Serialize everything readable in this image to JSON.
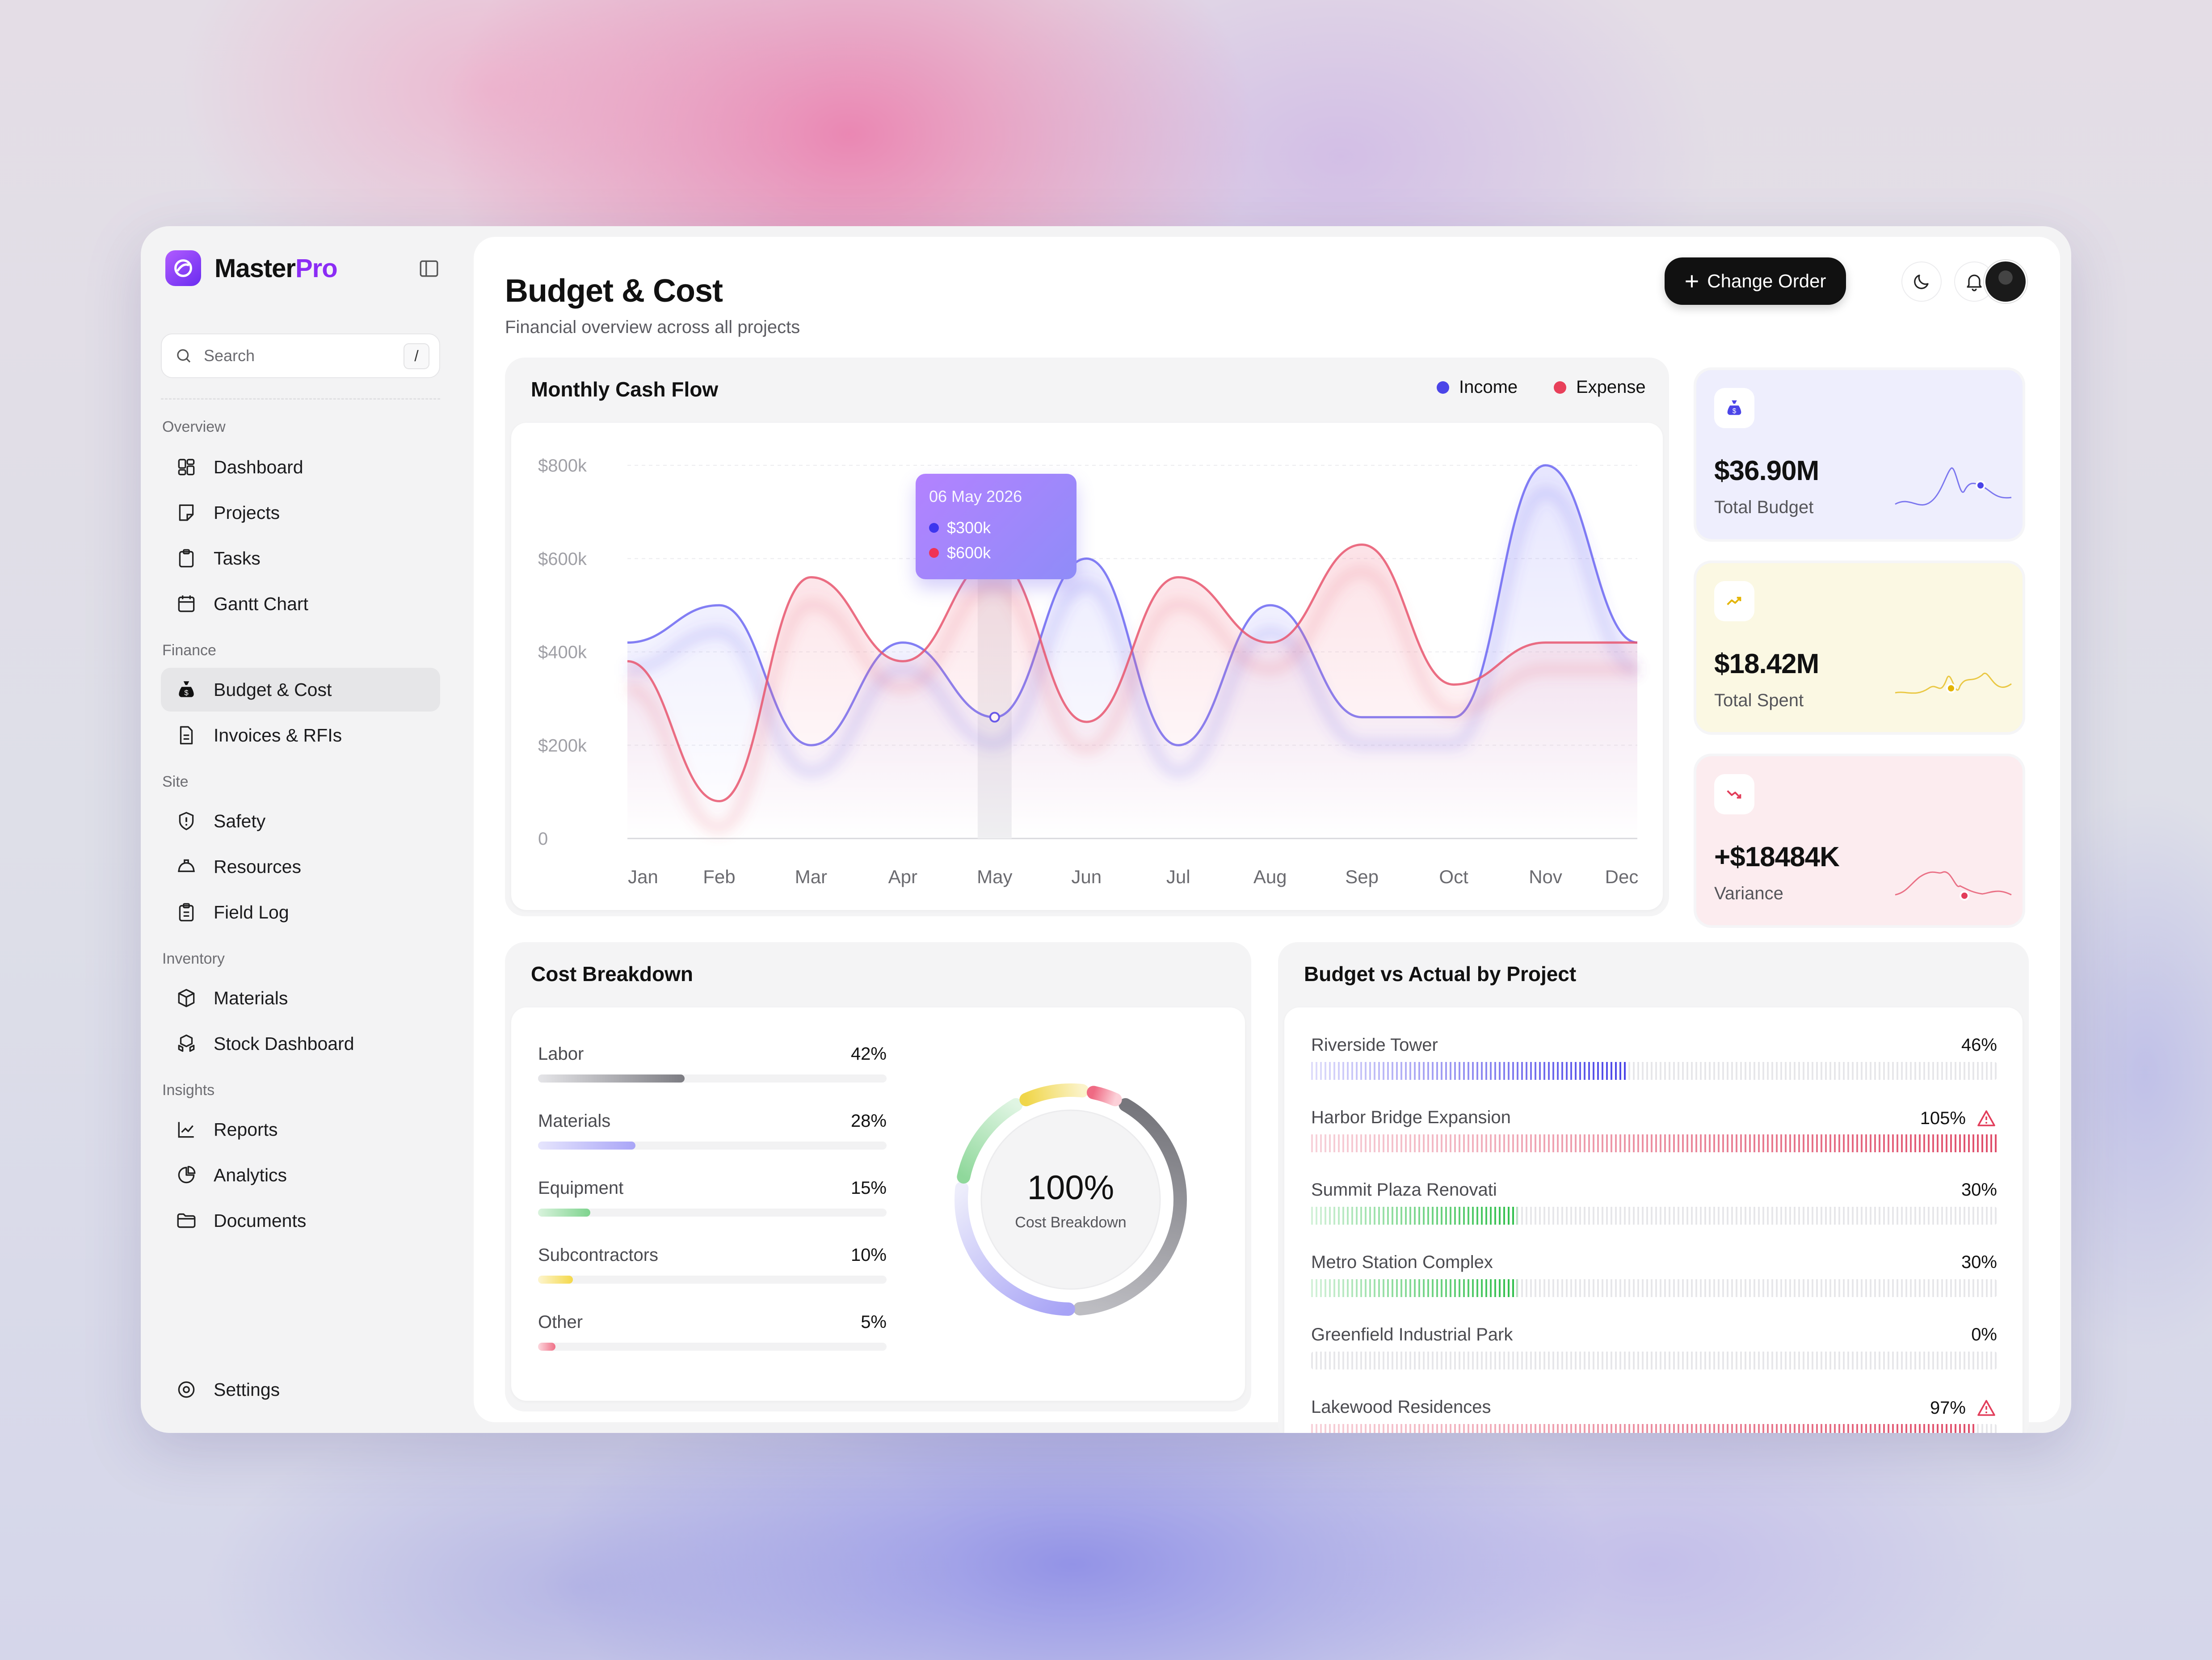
{
  "app": {
    "brand_main": "Master",
    "brand_accent": "Pro"
  },
  "search": {
    "placeholder": "Search",
    "shortcut": "/"
  },
  "sidebar": {
    "sections": {
      "overview": "Overview",
      "finance": "Finance",
      "site": "Site",
      "inventory": "Inventory",
      "insights": "Insights"
    },
    "items": {
      "dashboard": "Dashboard",
      "projects": "Projects",
      "tasks": "Tasks",
      "gantt": "Gantt Chart",
      "budget": "Budget & Cost",
      "invoices": "Invoices & RFIs",
      "safety": "Safety",
      "resources": "Resources",
      "fieldlog": "Field Log",
      "materials": "Materials",
      "stock": "Stock Dashboard",
      "reports": "Reports",
      "analytics": "Analytics",
      "documents": "Documents",
      "settings": "Settings"
    },
    "active": "budget"
  },
  "header": {
    "title": "Budget & Cost",
    "subtitle": "Financial overview across all projects",
    "change_order_label": "Change Order"
  },
  "cash_flow": {
    "title": "Monthly Cash Flow",
    "legend_income": "Income",
    "legend_expense": "Expense",
    "tooltip": {
      "date": "06 May 2026",
      "income": "$300k",
      "expense": "$600k"
    }
  },
  "chart_data": {
    "type": "line",
    "title": "Monthly Cash Flow",
    "categories": [
      "Jan",
      "Feb",
      "Mar",
      "Apr",
      "May",
      "Jun",
      "Jul",
      "Aug",
      "Sep",
      "Oct",
      "Nov",
      "Dec"
    ],
    "y_ticks": [
      "$800k",
      "$600k",
      "$400k",
      "$200k",
      "0"
    ],
    "ylim": [
      0,
      800
    ],
    "grid": true,
    "legend_position": "top-right",
    "series": [
      {
        "name": "Income",
        "color": "#5b55f0",
        "values": [
          420,
          500,
          200,
          420,
          260,
          600,
          200,
          500,
          260,
          260,
          800,
          420
        ]
      },
      {
        "name": "Expense",
        "color": "#e8566f",
        "values": [
          380,
          80,
          560,
          380,
          600,
          250,
          560,
          420,
          630,
          330,
          420,
          420
        ]
      }
    ]
  },
  "stats": [
    {
      "value": "$36.90M",
      "label": "Total Budget",
      "bg": "#eeeefd",
      "accent": "#4b45e8",
      "icon": "money-bag-icon"
    },
    {
      "value": "$18.42M",
      "label": "Total Spent",
      "bg": "#fbf8e3",
      "accent": "#e3b400",
      "icon": "trend-up-icon"
    },
    {
      "value": "+$18484K",
      "label": "Variance",
      "bg": "#fcecef",
      "accent": "#e23d5a",
      "icon": "trend-down-icon"
    }
  ],
  "cost_breakdown": {
    "title": "Cost Breakdown",
    "center_value": "100%",
    "center_label": "Cost Breakdown",
    "items": [
      {
        "name": "Labor",
        "pct": "42%",
        "value": 42
      },
      {
        "name": "Materials",
        "pct": "28%",
        "value": 28
      },
      {
        "name": "Equipment",
        "pct": "15%",
        "value": 15
      },
      {
        "name": "Subcontractors",
        "pct": "10%",
        "value": 10
      },
      {
        "name": "Other",
        "pct": "5%",
        "value": 5
      }
    ]
  },
  "budget_vs_actual": {
    "title": "Budget vs Actual by Project",
    "projects": [
      {
        "name": "Riverside Tower",
        "pct": "46%",
        "value": 46,
        "warn": false
      },
      {
        "name": "Harbor Bridge Expansion",
        "pct": "105%",
        "value": 105,
        "warn": true
      },
      {
        "name": "Summit Plaza Renovati",
        "pct": "30%",
        "value": 30,
        "warn": false
      },
      {
        "name": "Metro Station Complex",
        "pct": "30%",
        "value": 30,
        "warn": false
      },
      {
        "name": "Greenfield Industrial Park",
        "pct": "0%",
        "value": 0,
        "warn": false
      },
      {
        "name": "Lakewood Residences",
        "pct": "97%",
        "value": 97,
        "warn": true
      }
    ]
  }
}
